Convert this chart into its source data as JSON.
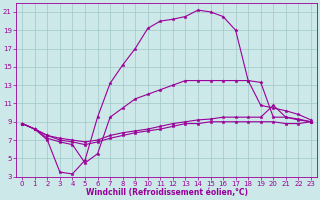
{
  "xlabel": "Windchill (Refroidissement éolien,°C)",
  "bg_color": "#cce8e8",
  "grid_color": "#a0c8c8",
  "line_color": "#990099",
  "xlim": [
    -0.5,
    23.5
  ],
  "ylim": [
    3,
    22
  ],
  "yticks": [
    3,
    5,
    7,
    9,
    11,
    13,
    15,
    17,
    19,
    21
  ],
  "xticks": [
    0,
    1,
    2,
    3,
    4,
    5,
    6,
    7,
    8,
    9,
    10,
    11,
    12,
    13,
    14,
    15,
    16,
    17,
    18,
    19,
    20,
    21,
    22,
    23
  ],
  "series_arc": {
    "x": [
      0,
      1,
      2,
      3,
      4,
      5,
      6,
      7,
      8,
      9,
      10,
      11,
      12,
      13,
      14,
      15,
      16,
      17,
      18,
      19,
      20,
      21,
      22,
      23
    ],
    "y": [
      8.8,
      8.2,
      7.0,
      3.5,
      3.3,
      4.8,
      9.5,
      13.2,
      15.2,
      17.0,
      19.2,
      20.0,
      20.2,
      20.5,
      21.2,
      21.0,
      20.5,
      19.0,
      13.5,
      10.8,
      10.5,
      10.2,
      9.8,
      9.2
    ]
  },
  "series_med": {
    "x": [
      0,
      1,
      2,
      3,
      4,
      5,
      6,
      7,
      8,
      9,
      10,
      11,
      12,
      13,
      14,
      15,
      16,
      17,
      18,
      19,
      20,
      21,
      22,
      23
    ],
    "y": [
      8.8,
      8.2,
      7.2,
      6.8,
      6.5,
      4.5,
      5.5,
      9.5,
      10.5,
      11.5,
      12.0,
      12.5,
      13.0,
      13.5,
      13.5,
      13.5,
      13.5,
      13.5,
      13.5,
      13.3,
      9.5,
      9.5,
      9.2,
      9.0
    ]
  },
  "series_flat1": {
    "x": [
      0,
      1,
      2,
      3,
      4,
      5,
      6,
      7,
      8,
      9,
      10,
      11,
      12,
      13,
      14,
      15,
      16,
      17,
      18,
      19,
      20,
      21,
      22,
      23
    ],
    "y": [
      8.8,
      8.2,
      7.5,
      7.2,
      7.0,
      6.8,
      7.0,
      7.5,
      7.8,
      8.0,
      8.2,
      8.5,
      8.8,
      9.0,
      9.2,
      9.3,
      9.5,
      9.5,
      9.5,
      9.5,
      10.8,
      9.5,
      9.3,
      9.0
    ]
  },
  "series_flat2": {
    "x": [
      0,
      1,
      2,
      3,
      4,
      5,
      6,
      7,
      8,
      9,
      10,
      11,
      12,
      13,
      14,
      15,
      16,
      17,
      18,
      19,
      20,
      21,
      22,
      23
    ],
    "y": [
      8.8,
      8.2,
      7.5,
      7.0,
      6.8,
      6.5,
      6.8,
      7.2,
      7.5,
      7.8,
      8.0,
      8.2,
      8.5,
      8.8,
      8.8,
      9.0,
      9.0,
      9.0,
      9.0,
      9.0,
      9.0,
      8.8,
      8.8,
      9.0
    ]
  },
  "tick_fontsize": 5,
  "xlabel_fontsize": 5.5
}
